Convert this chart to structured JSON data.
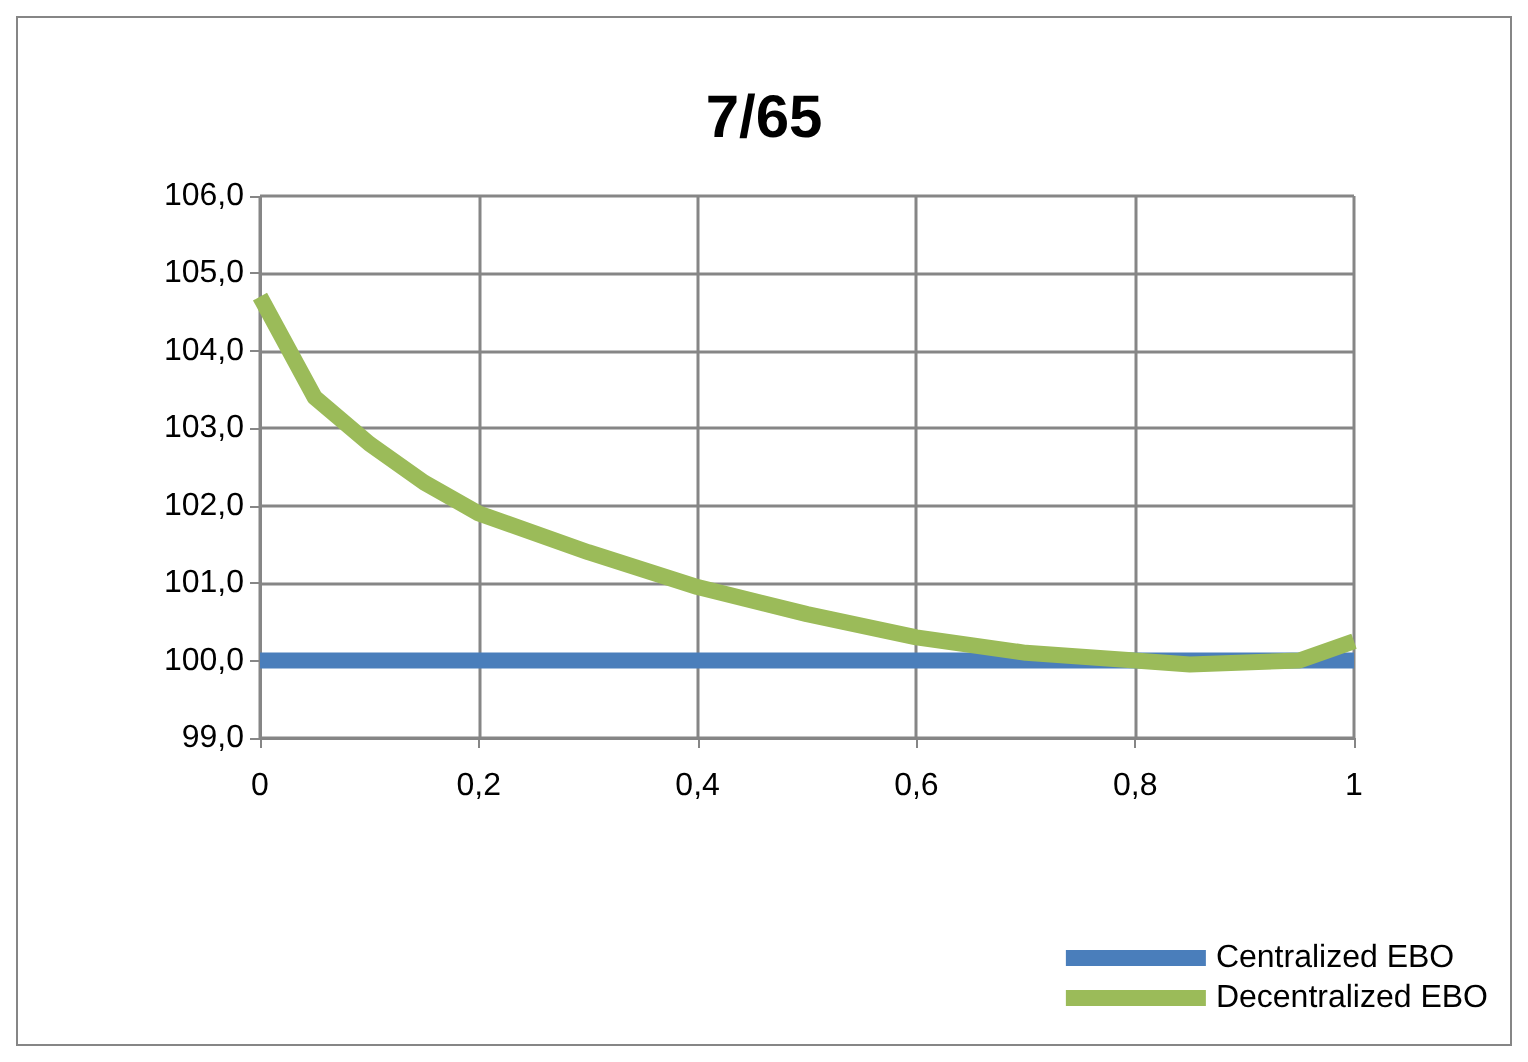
{
  "chart_data": {
    "type": "line",
    "title": "7/65",
    "xlim": [
      0,
      1
    ],
    "xticks": [
      0,
      {
        "value": 0.2,
        "label": "0,2"
      },
      {
        "value": 0.4,
        "label": "0,4"
      },
      {
        "value": 0.6,
        "label": "0,6"
      },
      {
        "value": 0.8,
        "label": "0,8"
      },
      1
    ],
    "ylim": [
      99,
      106
    ],
    "yticks": [
      {
        "value": 99,
        "label": "99,0"
      },
      {
        "value": 100,
        "label": "100,0"
      },
      {
        "value": 101,
        "label": "101,0"
      },
      {
        "value": 102,
        "label": "102,0"
      },
      {
        "value": 103,
        "label": "103,0"
      },
      {
        "value": 104,
        "label": "104,0"
      },
      {
        "value": 105,
        "label": "105,0"
      },
      {
        "value": 106,
        "label": "106,0"
      }
    ],
    "grid": true,
    "legend": "bottom right",
    "marker": "none",
    "line_style": "solid",
    "series": [
      {
        "name": "Centralized EBO",
        "color": "#4a7ebb",
        "x": [
          0,
          1
        ],
        "values": [
          100,
          100
        ]
      },
      {
        "name": "Decentralized EBO",
        "color": "#9bbb59",
        "x": [
          0,
          0.05,
          0.1,
          0.15,
          0.2,
          0.3,
          0.4,
          0.5,
          0.6,
          0.7,
          0.8,
          0.85,
          0.95,
          1
        ],
        "values": [
          104.7,
          103.4,
          102.8,
          102.3,
          101.9,
          101.4,
          100.95,
          100.6,
          100.3,
          100.1,
          100.0,
          99.95,
          100.0,
          100.25
        ]
      }
    ]
  }
}
